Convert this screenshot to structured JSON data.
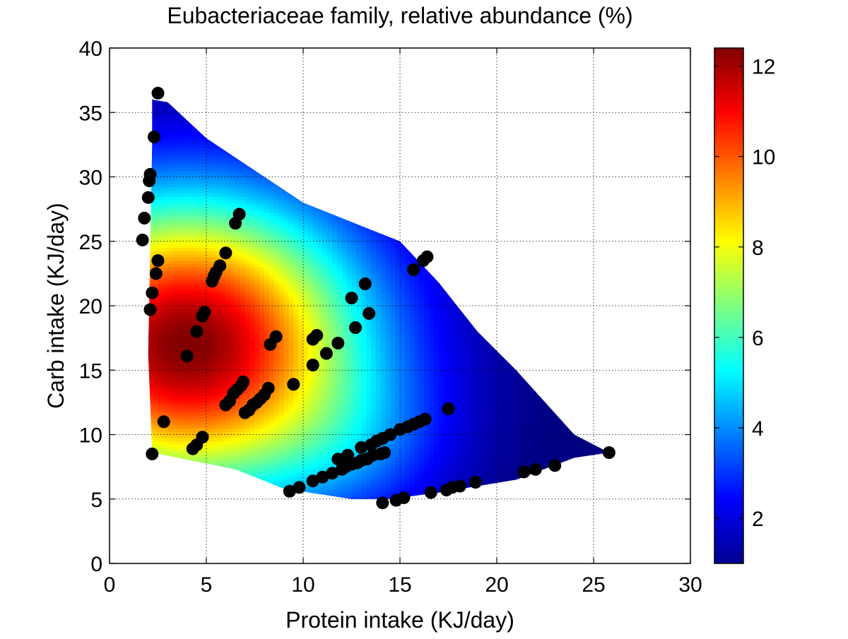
{
  "chart_data": {
    "type": "heatmap",
    "title": "Eubacteriaceae family, relative abundance (%)",
    "xlabel": "Protein intake (KJ/day)",
    "ylabel": "Carb intake (KJ/day)",
    "xlim": [
      0,
      30
    ],
    "ylim": [
      0,
      40
    ],
    "x_ticks": [
      "0",
      "5",
      "10",
      "15",
      "20",
      "25",
      "30"
    ],
    "y_ticks": [
      "0",
      "5",
      "10",
      "15",
      "20",
      "25",
      "30",
      "35",
      "40"
    ],
    "grid": true,
    "colormap": "jet",
    "colorbar": {
      "range": [
        1,
        12.4
      ],
      "ticks": [
        "2",
        "4",
        "6",
        "8",
        "10",
        "12"
      ]
    },
    "surface_region": [
      [
        2.2,
        36
      ],
      [
        2.2,
        32.5
      ],
      [
        2.0,
        16.3
      ],
      [
        2.2,
        8.6
      ],
      [
        6.5,
        7.3
      ],
      [
        9,
        5.8
      ],
      [
        12.5,
        5.0
      ],
      [
        14.5,
        5.0
      ],
      [
        17,
        5.5
      ],
      [
        21,
        6.5
      ],
      [
        24,
        8.2
      ],
      [
        25.8,
        8.6
      ],
      [
        24,
        10
      ],
      [
        21,
        15
      ],
      [
        19,
        18
      ],
      [
        17,
        21.8
      ],
      [
        15,
        25
      ],
      [
        10,
        28
      ],
      [
        5,
        33
      ],
      [
        3,
        35.8
      ]
    ],
    "surface_peak": {
      "x": 4.0,
      "y": 17.0,
      "value": 12.4
    },
    "points": [
      [
        2.5,
        36.5
      ],
      [
        2.3,
        33.1
      ],
      [
        2.1,
        30.2
      ],
      [
        2.05,
        29.7
      ],
      [
        2.0,
        28.4
      ],
      [
        1.8,
        26.8
      ],
      [
        1.7,
        25.1
      ],
      [
        2.5,
        23.5
      ],
      [
        2.4,
        22.5
      ],
      [
        2.2,
        21.0
      ],
      [
        2.1,
        19.7
      ],
      [
        2.2,
        8.5
      ],
      [
        2.8,
        11.0
      ],
      [
        4.0,
        16.1
      ],
      [
        4.5,
        18.0
      ],
      [
        4.8,
        19.2
      ],
      [
        4.9,
        19.5
      ],
      [
        4.3,
        8.9
      ],
      [
        4.5,
        9.2
      ],
      [
        4.8,
        9.8
      ],
      [
        5.3,
        21.9
      ],
      [
        5.4,
        22.3
      ],
      [
        5.5,
        22.6
      ],
      [
        5.7,
        23.1
      ],
      [
        6.0,
        24.1
      ],
      [
        6.5,
        26.4
      ],
      [
        6.7,
        27.1
      ],
      [
        6.0,
        12.3
      ],
      [
        6.2,
        12.6
      ],
      [
        6.4,
        13.2
      ],
      [
        6.6,
        13.5
      ],
      [
        6.8,
        13.8
      ],
      [
        6.9,
        14.1
      ],
      [
        7.0,
        11.7
      ],
      [
        7.2,
        11.9
      ],
      [
        7.4,
        12.3
      ],
      [
        7.6,
        12.5
      ],
      [
        7.8,
        12.8
      ],
      [
        8.0,
        13.1
      ],
      [
        8.2,
        13.6
      ],
      [
        8.3,
        17.0
      ],
      [
        8.6,
        17.6
      ],
      [
        9.3,
        5.6
      ],
      [
        9.8,
        5.9
      ],
      [
        9.5,
        13.9
      ],
      [
        10.5,
        15.4
      ],
      [
        10.5,
        17.4
      ],
      [
        10.7,
        17.7
      ],
      [
        11.2,
        16.3
      ],
      [
        11.8,
        17.1
      ],
      [
        10.5,
        6.4
      ],
      [
        11.0,
        6.7
      ],
      [
        11.5,
        7.0
      ],
      [
        12.0,
        7.3
      ],
      [
        12.2,
        7.5
      ],
      [
        12.5,
        7.7
      ],
      [
        12.8,
        7.8
      ],
      [
        13.0,
        8.0
      ],
      [
        13.3,
        8.1
      ],
      [
        13.6,
        8.4
      ],
      [
        14.0,
        8.5
      ],
      [
        14.2,
        8.6
      ],
      [
        11.8,
        8.1
      ],
      [
        12.3,
        8.4
      ],
      [
        13.0,
        9.0
      ],
      [
        13.5,
        9.2
      ],
      [
        13.8,
        9.5
      ],
      [
        14.1,
        9.7
      ],
      [
        14.5,
        10.0
      ],
      [
        15.0,
        10.4
      ],
      [
        15.4,
        10.6
      ],
      [
        15.7,
        10.8
      ],
      [
        16.0,
        11.0
      ],
      [
        16.3,
        11.2
      ],
      [
        12.5,
        20.6
      ],
      [
        12.7,
        18.3
      ],
      [
        13.2,
        21.7
      ],
      [
        13.4,
        19.4
      ],
      [
        14.1,
        4.7
      ],
      [
        14.8,
        4.9
      ],
      [
        15.2,
        5.1
      ],
      [
        16.6,
        5.5
      ],
      [
        17.4,
        5.7
      ],
      [
        17.7,
        5.9
      ],
      [
        18.1,
        6.0
      ],
      [
        18.9,
        6.3
      ],
      [
        15.7,
        22.8
      ],
      [
        16.2,
        23.5
      ],
      [
        16.4,
        23.8
      ],
      [
        17.5,
        12.0
      ],
      [
        21.4,
        7.1
      ],
      [
        22.0,
        7.3
      ],
      [
        23.0,
        7.6
      ],
      [
        25.8,
        8.6
      ]
    ]
  }
}
